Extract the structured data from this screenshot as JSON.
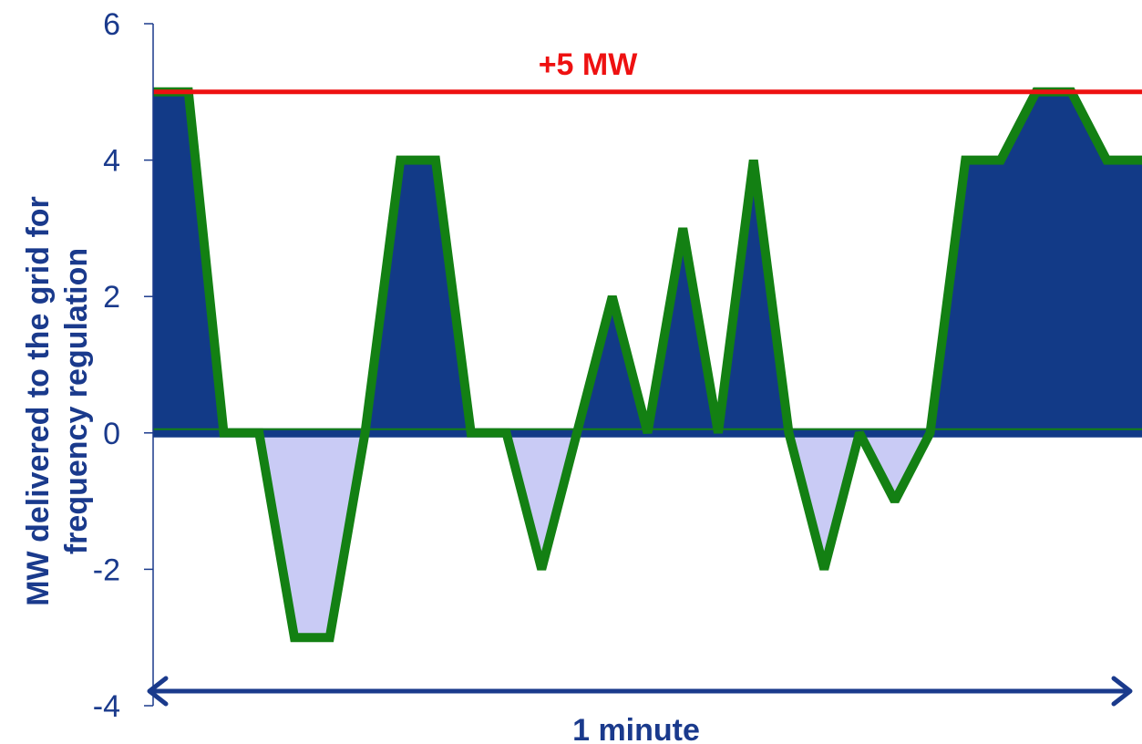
{
  "chart_data": {
    "type": "area",
    "ylabel_line1": "MW delivered to the grid for",
    "ylabel_line2": "frequency regulation",
    "ylim": [
      -4,
      6
    ],
    "yticks": [
      6,
      4,
      2,
      0,
      -2,
      -4
    ],
    "ytick_labels": [
      "6",
      "4",
      "2",
      "0",
      "-2",
      "-4"
    ],
    "grid": false,
    "x": [
      0,
      1,
      2,
      3,
      4,
      5,
      6,
      7,
      8,
      9,
      10,
      11,
      12,
      13,
      14,
      15,
      16,
      17,
      18,
      19,
      20,
      21,
      22,
      23,
      24,
      25,
      26,
      27,
      28
    ],
    "series": [
      {
        "values": [
          5,
          5,
          0,
          0,
          -3,
          -3,
          0,
          4,
          4,
          0,
          0,
          -2,
          0,
          2,
          0,
          3,
          0,
          4,
          0,
          -2,
          0,
          -1,
          0,
          4,
          4,
          5,
          5,
          4,
          4
        ]
      }
    ],
    "limit_line": {
      "value": 5,
      "label": "+5 MW"
    },
    "span_arrow": {
      "label": "1 minute"
    },
    "colors": {
      "positive_fill": "#123a87",
      "negative_fill": "#c9cbf5",
      "outline": "#138013",
      "limit": "#ee1111",
      "axis": "#1a3a8c",
      "text": "#1a3a8c"
    }
  }
}
